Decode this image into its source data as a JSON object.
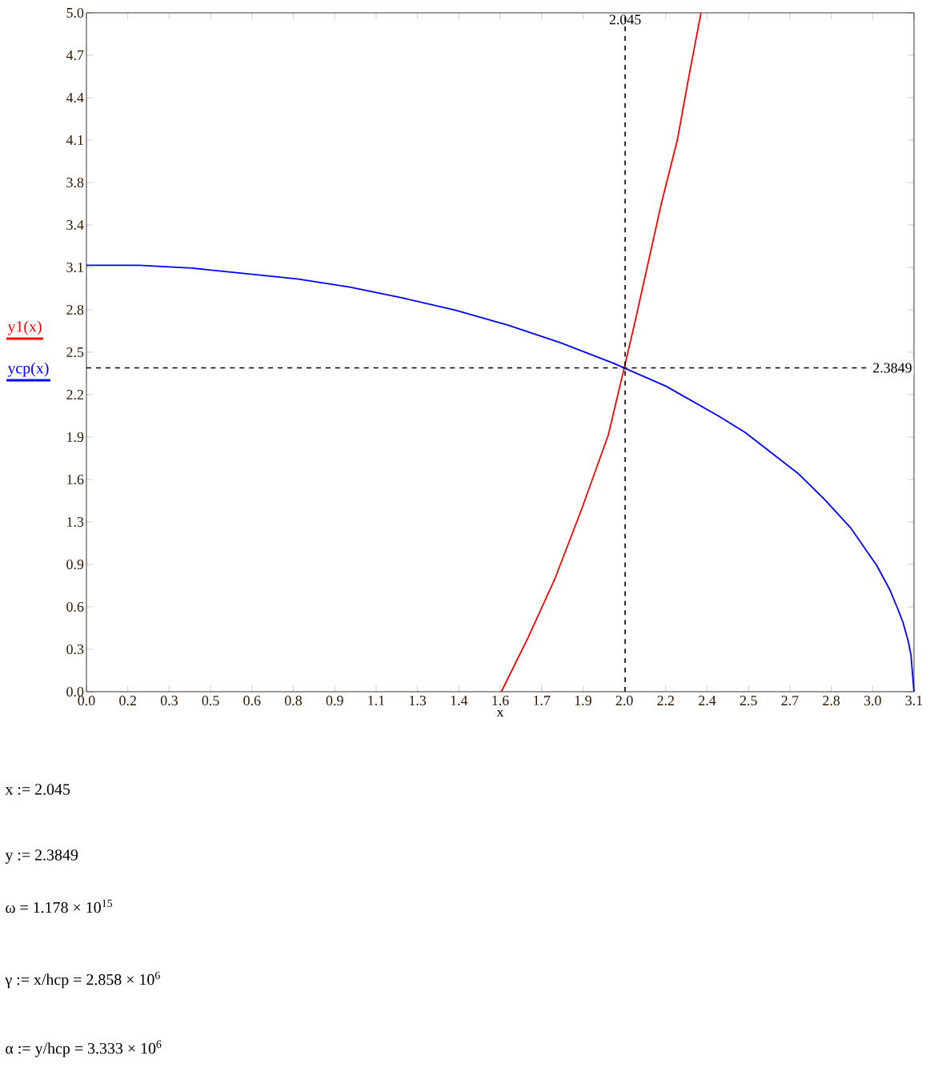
{
  "chart_data": {
    "type": "line",
    "xlabel": "x",
    "legend": "left",
    "marker": "none",
    "line_style": "solid",
    "grid": false,
    "xlim": [
      0,
      3.1416
    ],
    "ylim": [
      0,
      5.0
    ],
    "xticks": [
      {
        "value": 0,
        "label": "0.0"
      },
      {
        "value": 0.1571,
        "label": "0.2"
      },
      {
        "value": 0.3142,
        "label": "0.3"
      },
      {
        "value": 0.4712,
        "label": "0.5"
      },
      {
        "value": 0.6283,
        "label": "0.6"
      },
      {
        "value": 0.7854,
        "label": "0.8"
      },
      {
        "value": 0.9425,
        "label": "0.9"
      },
      {
        "value": 1.0996,
        "label": "1.1"
      },
      {
        "value": 1.2566,
        "label": "1.3"
      },
      {
        "value": 1.4137,
        "label": "1.4"
      },
      {
        "value": 1.5708,
        "label": "1.6"
      },
      {
        "value": 1.7279,
        "label": "1.7"
      },
      {
        "value": 1.885,
        "label": "1.9"
      },
      {
        "value": 2.042,
        "label": "2.0"
      },
      {
        "value": 2.1991,
        "label": "2.2"
      },
      {
        "value": 2.3562,
        "label": "2.4"
      },
      {
        "value": 2.5133,
        "label": "2.5"
      },
      {
        "value": 2.6704,
        "label": "2.7"
      },
      {
        "value": 2.8274,
        "label": "2.8"
      },
      {
        "value": 2.9845,
        "label": "3.0"
      },
      {
        "value": 3.1416,
        "label": "3.1"
      }
    ],
    "yticks": [
      {
        "value": 0,
        "label": "0.0"
      },
      {
        "value": 0.3125,
        "label": "0.3"
      },
      {
        "value": 0.625,
        "label": "0.6"
      },
      {
        "value": 0.9375,
        "label": "0.9"
      },
      {
        "value": 1.25,
        "label": "1.3"
      },
      {
        "value": 1.5625,
        "label": "1.6"
      },
      {
        "value": 1.875,
        "label": "1.9"
      },
      {
        "value": 2.1875,
        "label": "2.2"
      },
      {
        "value": 2.5,
        "label": "2.5"
      },
      {
        "value": 2.8125,
        "label": "2.8"
      },
      {
        "value": 3.125,
        "label": "3.1"
      },
      {
        "value": 3.4375,
        "label": "3.4"
      },
      {
        "value": 3.75,
        "label": "3.8"
      },
      {
        "value": 4.0625,
        "label": "4.1"
      },
      {
        "value": 4.375,
        "label": "4.4"
      },
      {
        "value": 4.6875,
        "label": "4.7"
      },
      {
        "value": 5.0,
        "label": "5.0"
      }
    ],
    "series": [
      {
        "name": "y1(x)",
        "color": "#ff0000",
        "x": [
          1.575,
          1.677,
          1.778,
          1.879,
          1.981,
          2.041,
          2.082,
          2.183,
          2.244,
          2.284,
          2.333
        ],
        "values": [
          0.0,
          0.4,
          0.83,
          1.34,
          1.89,
          2.38,
          2.72,
          3.6,
          4.07,
          4.5,
          5.0
        ]
      },
      {
        "name": "ycp(x)",
        "color": "#0000ff",
        "x": [
          0,
          0.2,
          0.4,
          0.6,
          0.8,
          1.0,
          1.2,
          1.4,
          1.6,
          1.8,
          2.0,
          2.2,
          2.4,
          2.5,
          2.6,
          2.7,
          2.8,
          2.9,
          2.95,
          3.0,
          3.05,
          3.08,
          3.1,
          3.12,
          3.13,
          3.1416
        ],
        "values": [
          3.14,
          3.14,
          3.12,
          3.08,
          3.04,
          2.98,
          2.9,
          2.81,
          2.7,
          2.57,
          2.42,
          2.25,
          2.03,
          1.91,
          1.76,
          1.61,
          1.42,
          1.21,
          1.07,
          0.93,
          0.75,
          0.61,
          0.51,
          0.37,
          0.27,
          0.0
        ]
      }
    ],
    "ref_lines": [
      {
        "axis": "x",
        "value": 2.045,
        "label": "2.045",
        "color": "#000000",
        "line_style": "dashed"
      },
      {
        "axis": "y",
        "value": 2.3849,
        "label": "2.3849",
        "color": "#000000",
        "line_style": "dashed"
      }
    ],
    "annotations": [
      "x := 2.045",
      "y := 2.3849",
      "ω = 1.178 × 10$^{15}$",
      "γ := x/hcp = 2.858 × 10$^{6}$",
      "α := y/hcp = 3.333 × 10$^{6}$"
    ]
  }
}
